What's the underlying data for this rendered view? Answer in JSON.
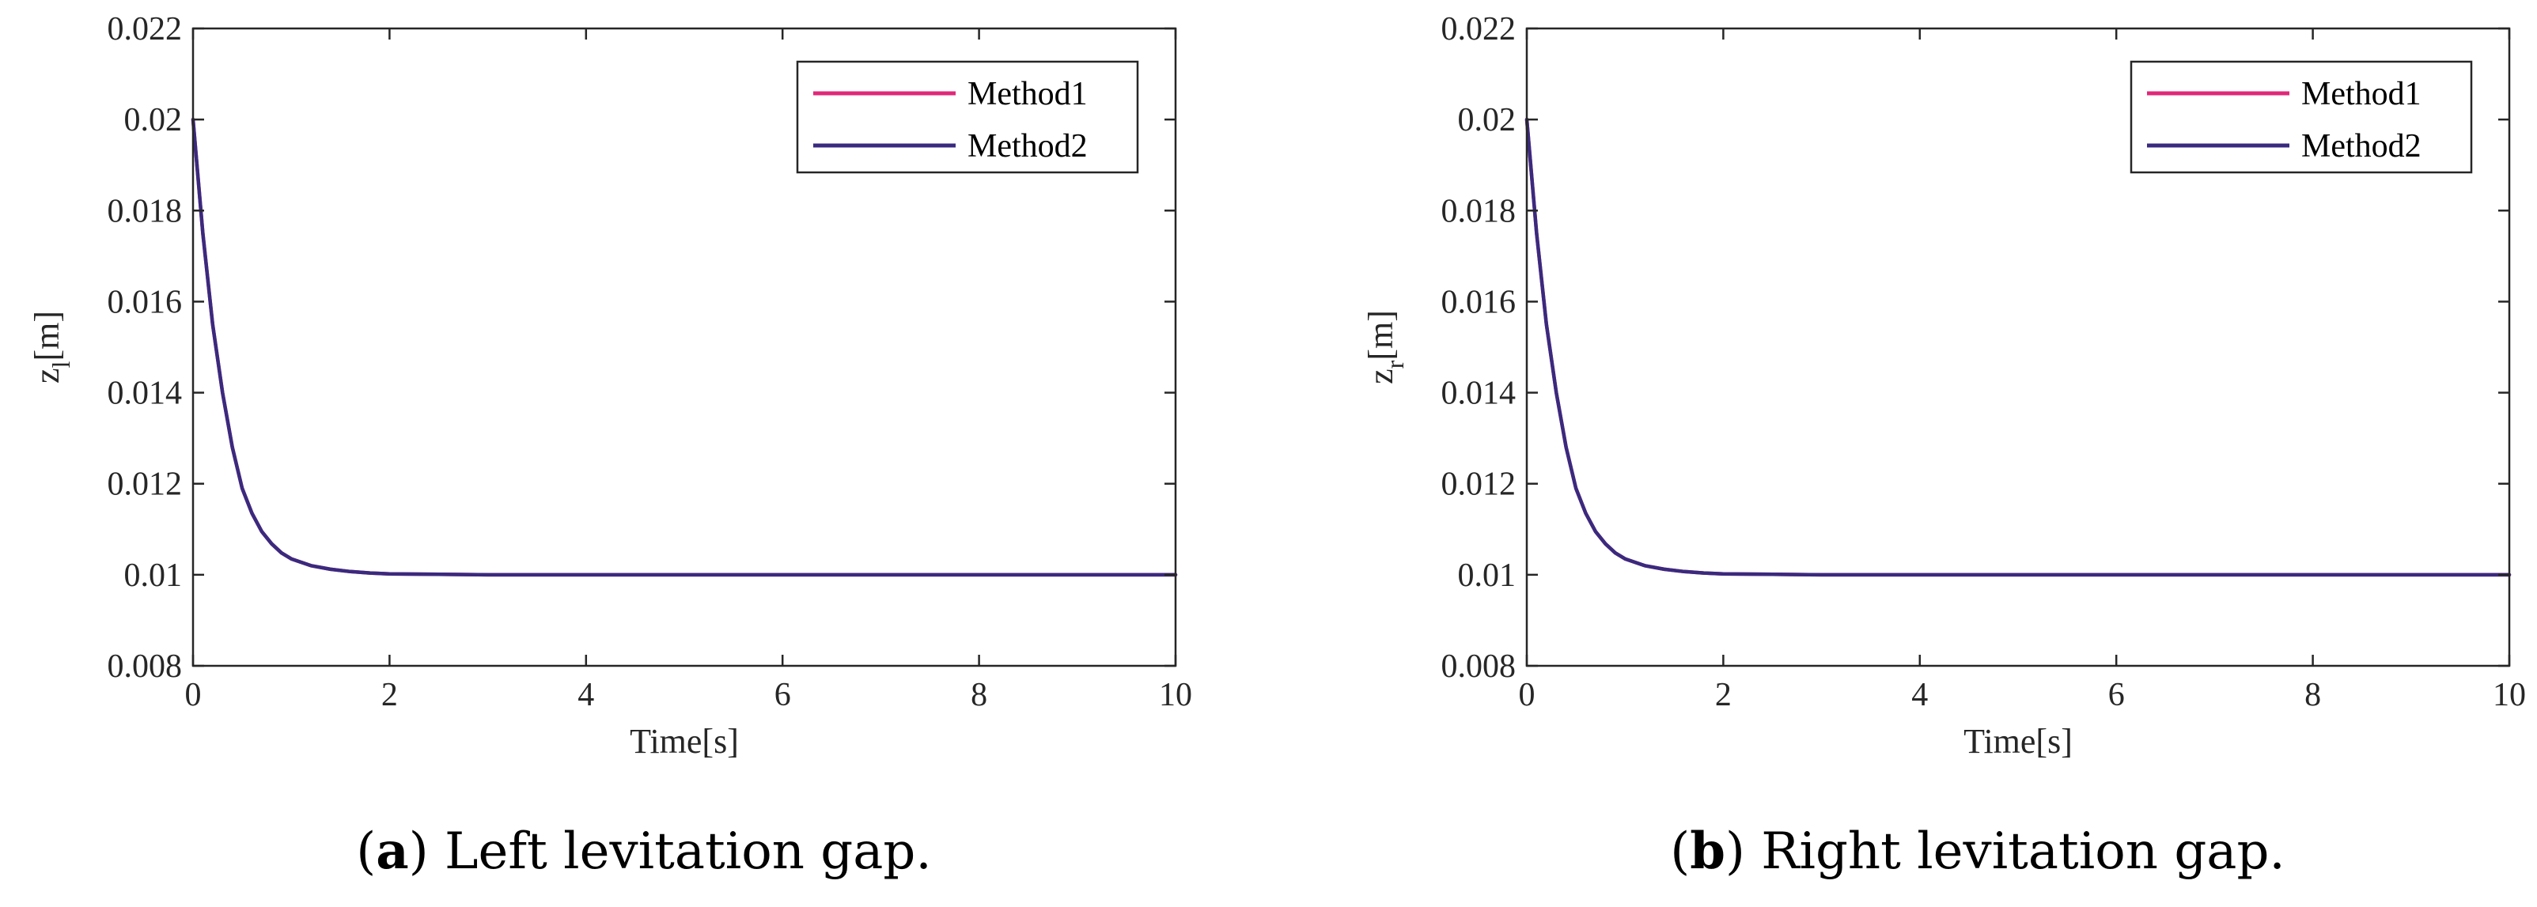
{
  "chart_data": [
    {
      "type": "line",
      "panel_label": "a",
      "caption": "Left levitation gap.",
      "xlabel": "Time[s]",
      "ylabel_main": "z",
      "ylabel_sub": "l",
      "ylabel_unit": "[m]",
      "xlim": [
        0,
        10
      ],
      "ylim": [
        0.008,
        0.022
      ],
      "xticks": [
        0,
        2,
        4,
        6,
        8,
        10
      ],
      "xtick_labels": [
        "0",
        "2",
        "4",
        "6",
        "8",
        "10"
      ],
      "yticks": [
        0.008,
        0.01,
        0.012,
        0.014,
        0.016,
        0.018,
        0.02,
        0.022
      ],
      "ytick_labels": [
        "0.008",
        "0.01",
        "0.012",
        "0.014",
        "0.016",
        "0.018",
        "0.02",
        "0.022"
      ],
      "grid": false,
      "legend_position": "top-right",
      "series": [
        {
          "name": "Method1",
          "color": "#e0287a",
          "x": [
            0,
            0.1,
            0.2,
            0.3,
            0.4,
            0.5,
            0.6,
            0.7,
            0.8,
            0.9,
            1.0,
            1.2,
            1.4,
            1.6,
            1.8,
            2.0,
            2.5,
            3,
            4,
            5,
            6,
            7,
            8,
            9,
            10
          ],
          "values": [
            0.02,
            0.0175,
            0.0155,
            0.014,
            0.0128,
            0.0119,
            0.01135,
            0.01095,
            0.01068,
            0.01048,
            0.01035,
            0.0102,
            0.01012,
            0.01007,
            0.01004,
            0.01002,
            0.01001,
            0.01,
            0.01,
            0.01,
            0.01,
            0.01,
            0.01,
            0.01,
            0.01
          ]
        },
        {
          "name": "Method2",
          "color": "#3a2a7e",
          "x": [
            0,
            0.1,
            0.2,
            0.3,
            0.4,
            0.5,
            0.6,
            0.7,
            0.8,
            0.9,
            1.0,
            1.2,
            1.4,
            1.6,
            1.8,
            2.0,
            2.5,
            3,
            4,
            5,
            6,
            7,
            8,
            9,
            10
          ],
          "values": [
            0.02,
            0.0175,
            0.0155,
            0.014,
            0.0128,
            0.0119,
            0.01135,
            0.01095,
            0.01068,
            0.01048,
            0.01035,
            0.0102,
            0.01012,
            0.01007,
            0.01004,
            0.01002,
            0.01001,
            0.01,
            0.01,
            0.01,
            0.01,
            0.01,
            0.01,
            0.01,
            0.01
          ]
        }
      ]
    },
    {
      "type": "line",
      "panel_label": "b",
      "caption": "Right levitation gap.",
      "xlabel": "Time[s]",
      "ylabel_main": "z",
      "ylabel_sub": "r",
      "ylabel_unit": "[m]",
      "xlim": [
        0,
        10
      ],
      "ylim": [
        0.008,
        0.022
      ],
      "xticks": [
        0,
        2,
        4,
        6,
        8,
        10
      ],
      "xtick_labels": [
        "0",
        "2",
        "4",
        "6",
        "8",
        "10"
      ],
      "yticks": [
        0.008,
        0.01,
        0.012,
        0.014,
        0.016,
        0.018,
        0.02,
        0.022
      ],
      "ytick_labels": [
        "0.008",
        "0.01",
        "0.012",
        "0.014",
        "0.016",
        "0.018",
        "0.02",
        "0.022"
      ],
      "grid": false,
      "legend_position": "top-right",
      "series": [
        {
          "name": "Method1",
          "color": "#e0287a",
          "x": [
            0,
            0.1,
            0.2,
            0.3,
            0.4,
            0.5,
            0.6,
            0.7,
            0.8,
            0.9,
            1.0,
            1.2,
            1.4,
            1.6,
            1.8,
            2.0,
            2.5,
            3,
            4,
            5,
            6,
            7,
            8,
            9,
            10
          ],
          "values": [
            0.02,
            0.0175,
            0.0155,
            0.014,
            0.0128,
            0.0119,
            0.01135,
            0.01095,
            0.01068,
            0.01048,
            0.01035,
            0.0102,
            0.01012,
            0.01007,
            0.01004,
            0.01002,
            0.01001,
            0.01,
            0.01,
            0.01,
            0.01,
            0.01,
            0.01,
            0.01,
            0.01
          ]
        },
        {
          "name": "Method2",
          "color": "#3a2a7e",
          "x": [
            0,
            0.1,
            0.2,
            0.3,
            0.4,
            0.5,
            0.6,
            0.7,
            0.8,
            0.9,
            1.0,
            1.2,
            1.4,
            1.6,
            1.8,
            2.0,
            2.5,
            3,
            4,
            5,
            6,
            7,
            8,
            9,
            10
          ],
          "values": [
            0.02,
            0.0175,
            0.0155,
            0.014,
            0.0128,
            0.0119,
            0.01135,
            0.01095,
            0.01068,
            0.01048,
            0.01035,
            0.0102,
            0.01012,
            0.01007,
            0.01004,
            0.01002,
            0.01001,
            0.01,
            0.01,
            0.01,
            0.01,
            0.01,
            0.01,
            0.01,
            0.01
          ]
        }
      ]
    }
  ]
}
